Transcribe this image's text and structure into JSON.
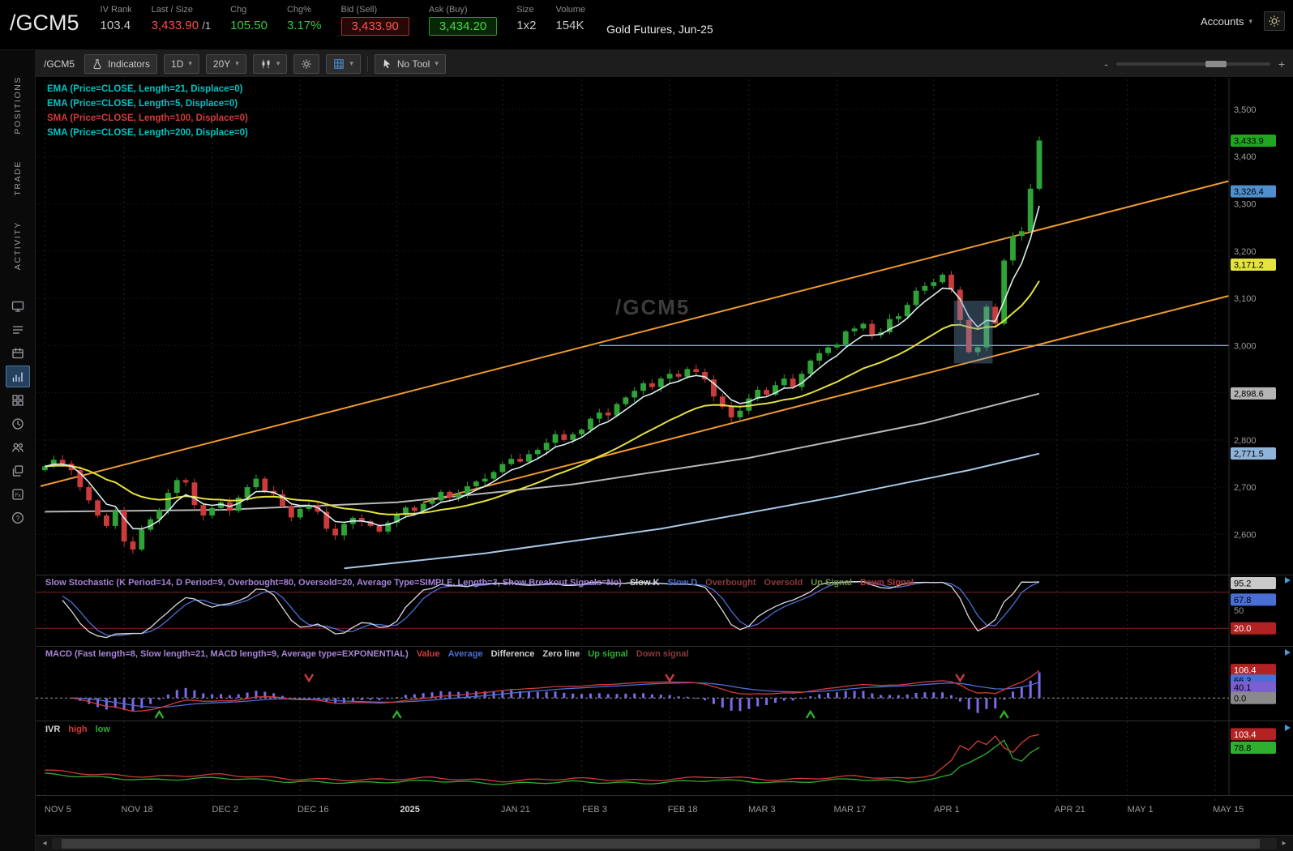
{
  "header": {
    "symbol": "/GCM5",
    "iv_rank_label": "IV Rank",
    "iv_rank": "103.4",
    "last_label": "Last / Size",
    "last": "3,433.90",
    "last_size": "/1",
    "chg_label": "Chg",
    "chg": "105.50",
    "chg_pct_label": "Chg%",
    "chg_pct": "3.17%",
    "bid_label": "Bid (Sell)",
    "bid": "3,433.90",
    "ask_label": "Ask (Buy)",
    "ask": "3,434.20",
    "size_label": "Size",
    "size": "1x2",
    "volume_label": "Volume",
    "volume": "154K",
    "description": "Gold Futures, Jun-25",
    "accounts_label": "Accounts"
  },
  "sidebar": {
    "tabs": [
      {
        "label": "POSITIONS"
      },
      {
        "label": "TRADE"
      },
      {
        "label": "ACTIVITY"
      }
    ]
  },
  "toolbar": {
    "symbol": "/GCM5",
    "indicators_label": "Indicators",
    "timeframe": "1D",
    "range": "20Y",
    "tool_label": "No Tool",
    "zoom_out": "-",
    "zoom_in": "+"
  },
  "studies": [
    {
      "label": "EMA (Price=CLOSE, Length=21, Displace=0)",
      "color": "#00c3c3"
    },
    {
      "label": "EMA (Price=CLOSE, Length=5, Displace=0)",
      "color": "#00c3c3"
    },
    {
      "label": "SMA (Price=CLOSE, Length=100, Displace=0)",
      "color": "#d43a3a"
    },
    {
      "label": "SMA (Price=CLOSE, Length=200, Displace=0)",
      "color": "#00c3c3"
    }
  ],
  "watermark": "/GCM5",
  "chart_data": {
    "type": "candlestick",
    "symbol": "/GCM5",
    "timeframe": "1D",
    "ylim": [
      2520,
      3560
    ],
    "closes": [
      2744,
      2758,
      2750,
      2736,
      2700,
      2672,
      2640,
      2618,
      2650,
      2585,
      2568,
      2610,
      2632,
      2652,
      2688,
      2715,
      2710,
      2662,
      2640,
      2656,
      2668,
      2650,
      2678,
      2700,
      2718,
      2692,
      2685,
      2660,
      2636,
      2654,
      2662,
      2648,
      2612,
      2598,
      2622,
      2635,
      2628,
      2618,
      2606,
      2625,
      2641,
      2657,
      2650,
      2665,
      2672,
      2690,
      2678,
      2686,
      2702,
      2712,
      2718,
      2732,
      2749,
      2760,
      2754,
      2770,
      2779,
      2794,
      2812,
      2800,
      2812,
      2822,
      2845,
      2858,
      2852,
      2876,
      2890,
      2904,
      2920,
      2912,
      2930,
      2940,
      2934,
      2950,
      2944,
      2928,
      2892,
      2870,
      2848,
      2862,
      2888,
      2906,
      2896,
      2916,
      2930,
      2912,
      2940,
      2968,
      2984,
      2996,
      3002,
      3030,
      3036,
      3046,
      3022,
      3028,
      3056,
      3062,
      3086,
      3116,
      3126,
      3134,
      3150,
      3118,
      3054,
      2986,
      2996,
      3082,
      3046,
      3180,
      3232,
      3242,
      3332,
      3434
    ],
    "date_ticks": [
      {
        "label": "NOV 5",
        "i": 0,
        "bright": false
      },
      {
        "label": "NOV 18",
        "i": 9,
        "bright": false
      },
      {
        "label": "DEC 2",
        "i": 19,
        "bright": false
      },
      {
        "label": "DEC 16",
        "i": 29,
        "bright": false
      },
      {
        "label": "2025",
        "i": 40,
        "bright": true
      },
      {
        "label": "JAN 21",
        "i": 52,
        "bright": false
      },
      {
        "label": "FEB 3",
        "i": 61,
        "bright": false
      },
      {
        "label": "FEB 18",
        "i": 71,
        "bright": false
      },
      {
        "label": "MAR 3",
        "i": 80,
        "bright": false
      },
      {
        "label": "MAR 17",
        "i": 90,
        "bright": false
      },
      {
        "label": "APR 1",
        "i": 101,
        "bright": false
      },
      {
        "label": "APR 21",
        "i": 115,
        "bright": false
      },
      {
        "label": "MAY 1",
        "i": 123,
        "bright": false
      },
      {
        "label": "MAY 15",
        "i": 133,
        "bright": false
      }
    ],
    "price_ticks": [
      {
        "p": 3500,
        "label": "3,500"
      },
      {
        "p": 3400,
        "label": "3,400"
      },
      {
        "p": 3300,
        "label": "3,300"
      },
      {
        "p": 3200,
        "label": "3,200"
      },
      {
        "p": 3100,
        "label": "3,100"
      },
      {
        "p": 3000,
        "label": "3,000"
      },
      {
        "p": 2900,
        "label": "2,900"
      },
      {
        "p": 2800,
        "label": "2,800"
      },
      {
        "p": 2700,
        "label": "2,700"
      },
      {
        "p": 2600,
        "label": "2,600"
      }
    ],
    "price_bubbles": [
      {
        "p": 3433.9,
        "label": "3,433.9",
        "bg": "#21a621",
        "fg": "#000000"
      },
      {
        "p": 3326.4,
        "label": "3,326.4",
        "bg": "#4f8fce",
        "fg": "#000000"
      },
      {
        "p": 3171.2,
        "label": "3,171.2",
        "bg": "#e4e43c",
        "fg": "#000000"
      },
      {
        "p": 2898.6,
        "label": "2,898.6",
        "bg": "#b5b5b5",
        "fg": "#000000"
      },
      {
        "p": 2771.5,
        "label": "2,771.5",
        "bg": "#8fb4d9",
        "fg": "#000000"
      }
    ],
    "colors": {
      "up": "#2fa337",
      "down": "#cb3b3b",
      "ema5": "#d9eded",
      "ema21": "#e5e13e",
      "sma100": "#b8b8b8",
      "sma200": "#a6c8e8",
      "trend": "#ef9b2f",
      "hline": "#6fb3c9",
      "box": "rgba(110,150,190,0.38)",
      "grid": "#242424",
      "axis_text": "#9a9a9a",
      "stoch_k": "#d8d8d8",
      "stoch_d": "#4a6fd4",
      "ob_os": "#7a2424",
      "macd_hist": "#7d6ae8",
      "macd_value": "#d43a3a",
      "macd_avg": "#4a6fd4",
      "zero": "#9a9a9a",
      "ivr_high": "#d43a3a",
      "ivr_low": "#2fae2f",
      "up_arrow": "#2fae2f",
      "down_arrow": "#cb3b3b",
      "watermark": "#3c3c3c",
      "expander": "#3f9fd4"
    },
    "overlays": {
      "sma100": [
        [
          0,
          2648
        ],
        [
          20,
          2652
        ],
        [
          40,
          2668
        ],
        [
          60,
          2706
        ],
        [
          80,
          2762
        ],
        [
          100,
          2836
        ],
        [
          113,
          2898
        ]
      ],
      "sma200": [
        [
          34,
          2528
        ],
        [
          50,
          2560
        ],
        [
          70,
          2612
        ],
        [
          90,
          2680
        ],
        [
          105,
          2736
        ],
        [
          113,
          2771
        ]
      ],
      "trend_upper": [
        [
          -0.5,
          2702
        ],
        [
          134.5,
          3348
        ]
      ],
      "trend_lower": [
        [
          43,
          2668
        ],
        [
          134.5,
          3105
        ]
      ],
      "hline": {
        "price": 3000,
        "from_i": 63
      },
      "box": {
        "i0": 103.3,
        "i1": 107.7,
        "p0": 2962,
        "p1": 3095
      }
    }
  },
  "stoch": {
    "legend": [
      {
        "text": "Slow Stochastic (K Period=14, D Period=9, Overbought=80, Oversold=20, Average Type=SIMPLE, Length=3, Show Breakout Signals=No)",
        "color": "#a883d8"
      },
      {
        "text": "Slow K",
        "color": "#d8d8d8"
      },
      {
        "text": "Slow D",
        "color": "#4a6fd4"
      },
      {
        "text": "Overbought",
        "color": "#8b3a3a"
      },
      {
        "text": "Oversold",
        "color": "#8b3a3a"
      },
      {
        "text": "Up Signal",
        "color": "#6f8f3f"
      },
      {
        "text": "Down Signal",
        "color": "#b23a3a"
      }
    ],
    "k_period": 14,
    "overbought": 80,
    "oversold": 20,
    "axis": [
      {
        "v": 95.2,
        "label": "95.2",
        "bg": "#c9c9c9",
        "fg": "#000000"
      },
      {
        "v": 67.8,
        "label": "67.8",
        "bg": "#4a6fd4",
        "fg": "#000000"
      },
      {
        "v": 50,
        "label": "50",
        "plain": true
      },
      {
        "v": 20,
        "label": "20.0",
        "bg": "#b22222",
        "fg": "#ffffff"
      }
    ]
  },
  "macd": {
    "legend": [
      {
        "text": "MACD (Fast length=8, Slow length=21, MACD length=9, Average type=EXPONENTIAL)",
        "color": "#a883d8"
      },
      {
        "text": "Value",
        "color": "#d43a3a"
      },
      {
        "text": "Average",
        "color": "#4a6fd4"
      },
      {
        "text": "Difference",
        "color": "#cfcfcf"
      },
      {
        "text": "Zero line",
        "color": "#cfcfcf"
      },
      {
        "text": "Up signal",
        "color": "#2fae2f"
      },
      {
        "text": "Down signal",
        "color": "#8b3a3a"
      }
    ],
    "fast": 8,
    "slow": 21,
    "signal": 9,
    "up_signals": [
      13,
      40,
      87,
      109
    ],
    "down_signals": [
      30,
      71,
      104
    ],
    "axis": [
      {
        "v": 106.4,
        "label": "106.4",
        "bg": "#b22222",
        "fg": "#ffffff"
      },
      {
        "v": 66.3,
        "label": "66.3",
        "bg": "#4a6fd4",
        "fg": "#000000"
      },
      {
        "v": 40.1,
        "label": "40.1",
        "bg": "#7b5fd0",
        "fg": "#000000"
      },
      {
        "v": 0,
        "label": "0.0",
        "bg": "#8a8a8a",
        "fg": "#000000"
      }
    ]
  },
  "ivr": {
    "legend": [
      {
        "text": "IVR",
        "color": "#d8d8d8"
      },
      {
        "text": "high",
        "color": "#d43a3a"
      },
      {
        "text": "low",
        "color": "#2fae2f"
      }
    ],
    "high": [
      [
        0,
        38
      ],
      [
        6,
        30
      ],
      [
        12,
        26
      ],
      [
        20,
        30
      ],
      [
        28,
        22
      ],
      [
        36,
        20
      ],
      [
        44,
        24
      ],
      [
        52,
        18
      ],
      [
        60,
        23
      ],
      [
        68,
        19
      ],
      [
        76,
        26
      ],
      [
        84,
        20
      ],
      [
        92,
        27
      ],
      [
        98,
        22
      ],
      [
        101,
        30
      ],
      [
        103,
        55
      ],
      [
        104,
        82
      ],
      [
        105,
        75
      ],
      [
        106,
        92
      ],
      [
        107,
        85
      ],
      [
        108,
        100
      ],
      [
        109,
        78
      ],
      [
        110,
        70
      ],
      [
        111,
        88
      ],
      [
        112,
        100
      ],
      [
        113,
        103
      ]
    ],
    "low": [
      [
        0,
        31
      ],
      [
        6,
        25
      ],
      [
        12,
        20
      ],
      [
        20,
        24
      ],
      [
        28,
        17
      ],
      [
        36,
        15
      ],
      [
        44,
        19
      ],
      [
        52,
        13
      ],
      [
        60,
        17
      ],
      [
        68,
        14
      ],
      [
        76,
        20
      ],
      [
        84,
        15
      ],
      [
        92,
        22
      ],
      [
        98,
        17
      ],
      [
        101,
        22
      ],
      [
        103,
        30
      ],
      [
        104,
        45
      ],
      [
        105,
        52
      ],
      [
        106,
        60
      ],
      [
        107,
        68
      ],
      [
        108,
        80
      ],
      [
        109,
        92
      ],
      [
        110,
        60
      ],
      [
        111,
        55
      ],
      [
        112,
        70
      ],
      [
        113,
        79
      ]
    ],
    "axis": [
      {
        "v": 103.4,
        "label": "103.4",
        "bg": "#b22222",
        "fg": "#ffffff"
      },
      {
        "v": 78.8,
        "label": "78.8",
        "bg": "#2fae2f",
        "fg": "#000000"
      }
    ]
  }
}
